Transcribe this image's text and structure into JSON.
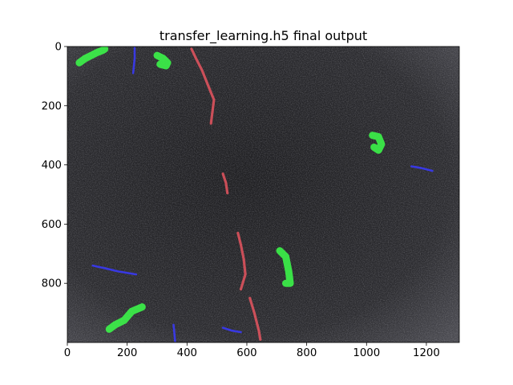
{
  "chart_data": {
    "type": "image",
    "title": "transfer_learning.h5 final output",
    "xlabel": "",
    "ylabel": "",
    "xlim": [
      0,
      1310
    ],
    "ylim": [
      1000,
      0
    ],
    "x_ticks": [
      0,
      200,
      400,
      600,
      800,
      1000,
      1200
    ],
    "y_ticks": [
      0,
      200,
      400,
      600,
      800
    ],
    "colors": {
      "background": "#2a2a2c",
      "green_overlay": "#3cff4a",
      "red_overlay": "#ff5a66",
      "blue_overlay": "#3a3aff"
    },
    "overlays": {
      "green": [
        {
          "points": [
            [
              40,
              55
            ],
            [
              60,
              40
            ],
            [
              80,
              30
            ],
            [
              100,
              20
            ],
            [
              120,
              12
            ],
            [
              125,
              8
            ]
          ]
        },
        {
          "points": [
            [
              300,
              30
            ],
            [
              320,
              40
            ],
            [
              335,
              55
            ],
            [
              330,
              65
            ],
            [
              310,
              60
            ]
          ]
        },
        {
          "points": [
            [
              1020,
              300
            ],
            [
              1040,
              305
            ],
            [
              1050,
              330
            ],
            [
              1040,
              350
            ],
            [
              1025,
              340
            ]
          ]
        },
        {
          "points": [
            [
              710,
              690
            ],
            [
              730,
              710
            ],
            [
              740,
              760
            ],
            [
              745,
              800
            ],
            [
              730,
              800
            ]
          ]
        },
        {
          "points": [
            [
              140,
              955
            ],
            [
              160,
              940
            ],
            [
              190,
              925
            ],
            [
              215,
              895
            ],
            [
              250,
              880
            ]
          ]
        }
      ],
      "red": [
        {
          "points": [
            [
              415,
              8
            ],
            [
              430,
              40
            ],
            [
              450,
              80
            ],
            [
              470,
              130
            ],
            [
              490,
              180
            ],
            [
              480,
              260
            ]
          ]
        },
        {
          "points": [
            [
              520,
              430
            ],
            [
              530,
              460
            ],
            [
              535,
              495
            ]
          ]
        },
        {
          "points": [
            [
              570,
              630
            ],
            [
              580,
              670
            ],
            [
              590,
              720
            ],
            [
              595,
              770
            ],
            [
              580,
              820
            ]
          ]
        },
        {
          "points": [
            [
              610,
              850
            ],
            [
              625,
              900
            ],
            [
              640,
              960
            ],
            [
              645,
              990
            ]
          ]
        }
      ],
      "blue": [
        {
          "points": [
            [
              225,
              5
            ],
            [
              225,
              40
            ],
            [
              222,
              70
            ],
            [
              220,
              90
            ]
          ]
        },
        {
          "points": [
            [
              85,
              740
            ],
            [
              130,
              750
            ],
            [
              170,
              760
            ],
            [
              230,
              770
            ]
          ]
        },
        {
          "points": [
            [
              355,
              940
            ],
            [
              358,
              970
            ],
            [
              360,
              995
            ]
          ]
        },
        {
          "points": [
            [
              520,
              950
            ],
            [
              550,
              960
            ],
            [
              580,
              965
            ]
          ]
        },
        {
          "points": [
            [
              1150,
              405
            ],
            [
              1180,
              410
            ],
            [
              1220,
              420
            ]
          ]
        }
      ]
    }
  }
}
